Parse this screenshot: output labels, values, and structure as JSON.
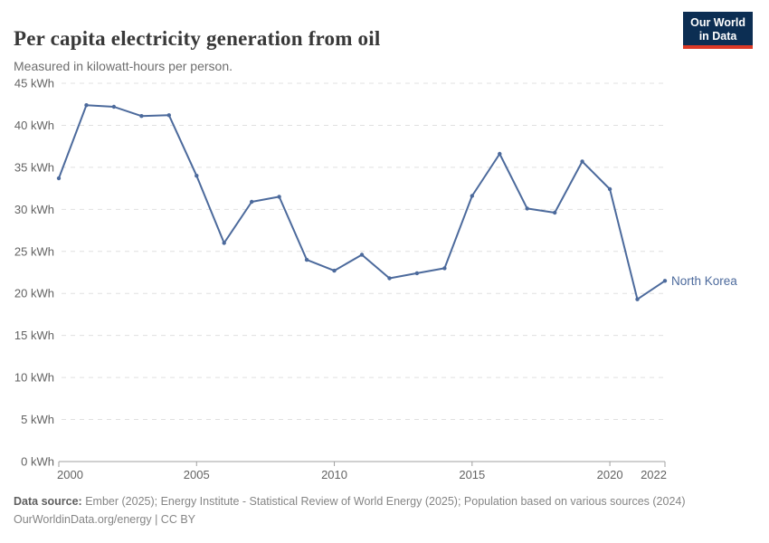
{
  "header": {
    "title": "Per capita electricity generation from oil",
    "subtitle": "Measured in kilowatt-hours per person."
  },
  "logo": {
    "line1": "Our World",
    "line2": "in Data",
    "bg_color": "#0c2e53",
    "accent_color": "#dc3926"
  },
  "chart_data": {
    "type": "line",
    "title": "Per capita electricity generation from oil",
    "unit": "kWh",
    "x": [
      2000,
      2001,
      2002,
      2003,
      2004,
      2005,
      2006,
      2007,
      2008,
      2009,
      2010,
      2011,
      2012,
      2013,
      2014,
      2015,
      2016,
      2017,
      2018,
      2019,
      2020,
      2021,
      2022
    ],
    "series": [
      {
        "name": "North Korea",
        "color": "#4c6a9c",
        "values": [
          33.7,
          42.4,
          42.2,
          41.1,
          41.2,
          34.0,
          26.0,
          30.9,
          31.5,
          24.0,
          22.7,
          24.6,
          21.8,
          22.4,
          23.0,
          31.6,
          36.6,
          30.1,
          29.6,
          35.7,
          32.4,
          19.3,
          21.5
        ]
      }
    ],
    "ylim": [
      0,
      45
    ],
    "yticks": [
      0,
      5,
      10,
      15,
      20,
      25,
      30,
      35,
      40,
      45
    ],
    "ytick_labels": [
      "0 kWh",
      "5 kWh",
      "10 kWh",
      "15 kWh",
      "20 kWh",
      "25 kWh",
      "30 kWh",
      "35 kWh",
      "40 kWh",
      "45 kWh"
    ],
    "xticks": [
      2000,
      2005,
      2010,
      2015,
      2020,
      2022
    ],
    "xtick_labels": [
      "2000",
      "2005",
      "2010",
      "2015",
      "2020",
      "2022"
    ],
    "grid": "horizontal-dashed",
    "gridline_color": "#e0e0e0",
    "axis_color": "#a0a0a0",
    "tick_label_color": "#636363",
    "legend_position": "end-of-line"
  },
  "footer": {
    "source_label": "Data source:",
    "source_text": "Ember (2025); Energy Institute - Statistical Review of World Energy (2025); Population based on various sources (2024)",
    "line2": "OurWorldinData.org/energy | CC BY"
  }
}
